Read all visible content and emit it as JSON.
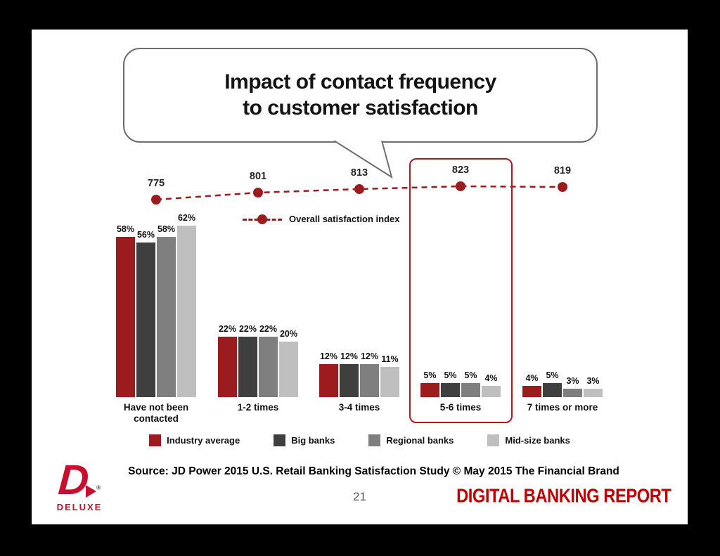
{
  "slide": {
    "title_line1": "Impact of contact frequency",
    "title_line2": "to customer satisfaction",
    "source": "Source: JD Power 2015 U.S. Retail Banking Satisfaction Study © May 2015 The Financial Brand",
    "page_number": "21",
    "brand_footer": "DIGITAL BANKING REPORT",
    "logo_text": "DELUXE",
    "colors": {
      "brand_red": "#C00000",
      "highlight_box": "#A81C22",
      "logo_red": "#C8102E"
    }
  },
  "chart_data": {
    "type": "bar",
    "title": "Impact of contact frequency to customer satisfaction",
    "categories": [
      "Have not been contacted",
      "1-2 times",
      "3-4 times",
      "5-6 times",
      "7 times or more"
    ],
    "series": [
      {
        "name": "Industry average",
        "color": "#9B1B1E",
        "values": [
          58,
          22,
          12,
          5,
          4
        ]
      },
      {
        "name": "Big banks",
        "color": "#3F3F3F",
        "values": [
          56,
          22,
          12,
          5,
          5
        ]
      },
      {
        "name": "Regional banks",
        "color": "#7F7F7F",
        "values": [
          58,
          22,
          12,
          5,
          3
        ]
      },
      {
        "name": "Mid-size banks",
        "color": "#BFBFBF",
        "values": [
          62,
          20,
          11,
          4,
          3
        ]
      }
    ],
    "value_suffix": "%",
    "line_series": {
      "name": "Overall satisfaction index",
      "color": "#9B1B1E",
      "values": [
        775,
        801,
        813,
        823,
        819
      ]
    },
    "highlighted_category": "5-6 times",
    "ylim": [
      0,
      65
    ],
    "grid": false,
    "legend_position": "bottom"
  }
}
